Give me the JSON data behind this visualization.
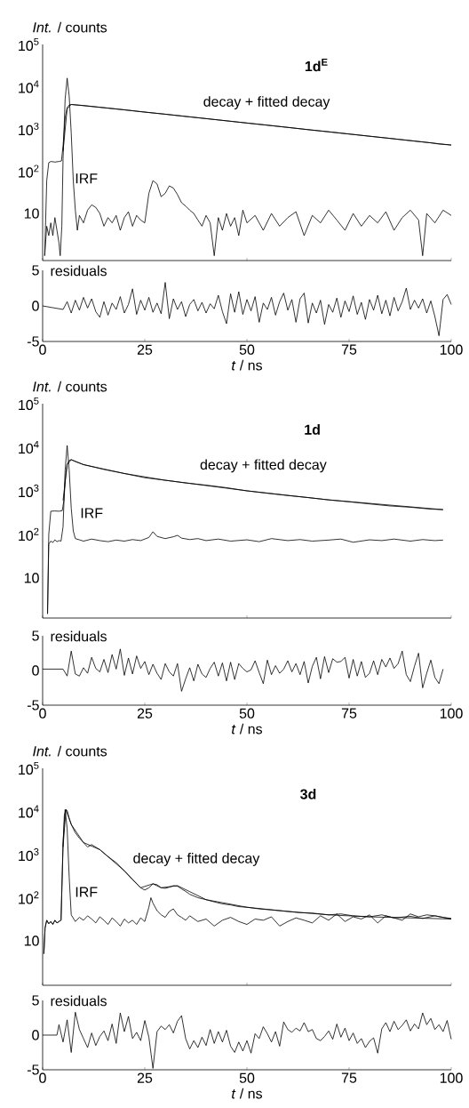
{
  "chart_data": [
    {
      "type": "line",
      "title": "1d$^{E}$",
      "ylabel": "*Int.* / counts",
      "log": true,
      "tick_labels": "y",
      "xlim": [
        0,
        100
      ],
      "ylim": [
        0.77,
        100000
      ],
      "xticks": [
        {
          "value": 0,
          "label": null
        },
        {
          "value": 50,
          "label": null
        },
        {
          "value": 100,
          "label": null
        }
      ],
      "yticks": [
        10,
        {
          "value": 100,
          "label": "10$^{2}$"
        },
        {
          "value": 1000,
          "label": "10$^{3}$"
        },
        {
          "value": 10000,
          "label": "10$^{4}$"
        },
        {
          "value": 100000,
          "label": "10$^{5}$"
        }
      ],
      "annotations": [
        "decay + fitted decay",
        "IRF"
      ],
      "series": [
        {
          "color": "#000000",
          "x": [
            0.5,
            1,
            1.5,
            2,
            3,
            4,
            4.6,
            5,
            5.5,
            6,
            6.5,
            7,
            10,
            15,
            20,
            25,
            30,
            35,
            40,
            45,
            50,
            55,
            60,
            65,
            70,
            75,
            80,
            85,
            90,
            95,
            97,
            100
          ],
          "values": [
            1,
            60,
            160,
            170,
            165,
            170,
            175,
            400,
            1800,
            3200,
            3700,
            3800,
            3600,
            3200,
            2840,
            2500,
            2240,
            1980,
            1760,
            1560,
            1380,
            1230,
            1090,
            960,
            857,
            760,
            674,
            600,
            530,
            470,
            440,
            417
          ]
        },
        {
          "color": "#000000",
          "x": [
            5,
            6,
            7,
            20,
            40,
            60,
            80,
            100
          ],
          "values": [
            300,
            3000,
            3800,
            2840,
            1760,
            1090,
            674,
            417
          ]
        },
        {
          "color": "#000000",
          "x": [
            0.5,
            1,
            1.5,
            2,
            2.5,
            3,
            3.5,
            4,
            4.3,
            4.7,
            5,
            5.5,
            6,
            6.5,
            7,
            7.5,
            8,
            8.5,
            9,
            10,
            11,
            12,
            13,
            14,
            15,
            16,
            17,
            18,
            19,
            20,
            21,
            22,
            23,
            24,
            25,
            26,
            27,
            28,
            29,
            30,
            31,
            32,
            33,
            34,
            35,
            36,
            37,
            38,
            39,
            40,
            41,
            42,
            43,
            44,
            45,
            46,
            47,
            48,
            49,
            50,
            52,
            54,
            56,
            58,
            60,
            62,
            64,
            66,
            68,
            70,
            72,
            74,
            76,
            78,
            80,
            82,
            84,
            86,
            88,
            90,
            92,
            93,
            94,
            96,
            98,
            100
          ],
          "values": [
            1,
            5,
            3,
            6,
            3,
            8,
            4,
            2,
            1,
            5,
            200,
            5000,
            16000,
            6000,
            800,
            60,
            12,
            4,
            9,
            6,
            12,
            16,
            14,
            10,
            5,
            8,
            6,
            9,
            4,
            8,
            11,
            5,
            9,
            7,
            6,
            30,
            60,
            50,
            25,
            30,
            45,
            40,
            28,
            18,
            15,
            12,
            10,
            7,
            5,
            9,
            6,
            1,
            8,
            4,
            10,
            5,
            8,
            3,
            12,
            6,
            9,
            4,
            10,
            5,
            8,
            11,
            3,
            9,
            6,
            12,
            7,
            4,
            10,
            5,
            9,
            6,
            11,
            4,
            8,
            12,
            7,
            1,
            10,
            6,
            12,
            9
          ]
        }
      ]
    },
    {
      "type": "line",
      "ylabel": "residuals",
      "xlabel": "*t* / ns",
      "xlim": [
        0,
        100
      ],
      "ylim": [
        -5,
        5
      ],
      "xticks": [
        0,
        25,
        50,
        75,
        100
      ],
      "yticks": [
        -5,
        0,
        5
      ],
      "x": [
        0,
        5,
        6,
        7,
        8,
        9,
        10,
        11,
        12,
        13,
        14,
        15,
        16,
        17,
        18,
        19,
        20,
        21,
        22,
        23,
        24,
        25,
        26,
        27,
        28,
        29,
        30,
        31,
        32,
        33,
        34,
        35,
        36,
        37,
        38,
        39,
        40,
        41,
        42,
        43,
        44,
        45,
        46,
        47,
        48,
        49,
        50,
        51,
        52,
        53,
        54,
        55,
        56,
        57,
        58,
        59,
        60,
        61,
        62,
        63,
        64,
        65,
        66,
        67,
        68,
        69,
        70,
        71,
        72,
        73,
        74,
        75,
        76,
        77,
        78,
        79,
        80,
        81,
        82,
        83,
        84,
        85,
        86,
        87,
        88,
        89,
        90,
        91,
        92,
        93,
        94,
        95,
        96,
        97,
        98,
        99,
        100
      ],
      "series": [
        {
          "color": "#000000",
          "values": [
            0,
            -0.5,
            0.6,
            -1.0,
            0.8,
            -0.6,
            1.2,
            -0.3,
            1.0,
            -0.8,
            -1.6,
            0.6,
            -1.3,
            0.4,
            -0.5,
            1.3,
            -1.0,
            0.2,
            2.4,
            -1.2,
            0.8,
            -0.6,
            1.2,
            -0.9,
            0.4,
            -1.1,
            3.3,
            -1.8,
            1.0,
            -0.5,
            0.6,
            -1.5,
            0.2,
            0.9,
            -0.7,
            0.5,
            -1.0,
            0.3,
            -0.4,
            1.5,
            -0.8,
            -2.5,
            1.7,
            -0.9,
            2.0,
            -1.2,
            0.9,
            -0.7,
            1.3,
            -2.3,
            0.4,
            -0.5,
            1.2,
            -1.3,
            0.6,
            1.8,
            -0.6,
            0.9,
            -2.3,
            1.0,
            1.8,
            -2.4,
            0.4,
            -1.0,
            0.8,
            -2.6,
            0.2,
            -0.9,
            1.1,
            -1.6,
            0.7,
            -0.8,
            1.4,
            -1.2,
            0.5,
            -1.9,
            0.9,
            -0.6,
            1.5,
            -1.1,
            0.8,
            -1.4,
            1.2,
            -0.7,
            0.6,
            2.5,
            -0.5,
            0.8,
            -0.3,
            1.0,
            -1.0,
            0.7,
            -1.5,
            -4.2,
            0.9,
            1.6,
            0.2
          ]
        }
      ]
    },
    {
      "type": "line",
      "title": "1d",
      "ylabel": "*Int.* / counts",
      "log": true,
      "tick_labels": "y",
      "xlim": [
        0,
        100
      ],
      "ylim": [
        1.2,
        100000
      ],
      "xticks": [
        {
          "value": 0,
          "label": null
        },
        {
          "value": 50,
          "label": null
        },
        {
          "value": 100,
          "label": null
        }
      ],
      "yticks": [
        10,
        {
          "value": 100,
          "label": "10$^{2}$"
        },
        {
          "value": 1000,
          "label": "10$^{3}$"
        },
        {
          "value": 10000,
          "label": "10$^{4}$"
        },
        {
          "value": 100000,
          "label": "10$^{5}$"
        }
      ],
      "annotations": [
        "decay + fitted decay",
        "IRF"
      ],
      "series": [
        {
          "color": "#000000",
          "x": [
            1.2,
            1.5,
            2,
            3,
            4,
            4.8,
            5.2,
            5.6,
            6,
            6.5,
            7,
            8,
            10,
            15,
            20,
            25,
            30,
            35,
            40,
            45,
            50,
            55,
            60,
            65,
            70,
            75,
            80,
            85,
            90,
            95,
            98
          ],
          "values": [
            1.5,
            100,
            340,
            345,
            340,
            350,
            600,
            2000,
            4000,
            5000,
            5200,
            4700,
            4000,
            3100,
            2500,
            2000,
            1750,
            1520,
            1350,
            1180,
            1000,
            880,
            780,
            700,
            620,
            560,
            500,
            450,
            420,
            380,
            370
          ]
        },
        {
          "color": "#000000",
          "x": [
            5,
            6,
            7,
            10,
            20,
            30,
            50,
            70,
            98
          ],
          "values": [
            600,
            4000,
            5200,
            4000,
            2500,
            1750,
            1000,
            620,
            370
          ]
        },
        {
          "color": "#000000",
          "x": [
            1.2,
            1.5,
            2,
            2.5,
            3,
            3.5,
            4,
            4.5,
            5,
            5.5,
            6,
            6.5,
            7,
            7.5,
            8,
            9,
            10,
            12,
            14,
            16,
            18,
            20,
            22,
            24,
            26,
            27,
            28,
            30,
            32,
            33,
            34,
            36,
            38,
            40,
            43,
            46,
            50,
            53,
            56,
            60,
            63,
            66,
            70,
            73,
            76,
            80,
            83,
            86,
            90,
            93,
            96,
            98
          ],
          "values": [
            1.5,
            60,
            70,
            65,
            75,
            68,
            72,
            70,
            150,
            3000,
            11000,
            3000,
            400,
            120,
            80,
            75,
            70,
            78,
            72,
            68,
            74,
            70,
            76,
            72,
            85,
            115,
            90,
            80,
            88,
            95,
            82,
            76,
            80,
            72,
            78,
            70,
            75,
            68,
            80,
            72,
            76,
            70,
            74,
            78,
            66,
            75,
            72,
            78,
            70,
            76,
            72,
            74
          ]
        }
      ]
    },
    {
      "type": "line",
      "ylabel": "residuals",
      "xlabel": "*t* / ns",
      "xlim": [
        0,
        100
      ],
      "ylim": [
        -5,
        5
      ],
      "xticks": [
        0,
        25,
        50,
        75,
        100
      ],
      "yticks": [
        -5,
        0,
        5
      ],
      "x": [
        0,
        5,
        6,
        7,
        8,
        9,
        10,
        11,
        12,
        13,
        14,
        15,
        16,
        17,
        18,
        19,
        20,
        21,
        22,
        23,
        24,
        25,
        26,
        27,
        28,
        29,
        30,
        31,
        32,
        33,
        34,
        35,
        36,
        37,
        38,
        39,
        40,
        41,
        42,
        43,
        44,
        45,
        46,
        47,
        48,
        49,
        50,
        51,
        52,
        53,
        54,
        55,
        56,
        57,
        58,
        59,
        60,
        61,
        62,
        63,
        64,
        65,
        66,
        67,
        68,
        69,
        70,
        71,
        72,
        73,
        74,
        75,
        76,
        77,
        78,
        79,
        80,
        81,
        82,
        83,
        84,
        85,
        86,
        87,
        88,
        89,
        90,
        91,
        92,
        93,
        94,
        95,
        96,
        97,
        98
      ],
      "series": [
        {
          "color": "#000000",
          "values": [
            0.2,
            0.2,
            -0.8,
            2.8,
            -0.5,
            -0.8,
            0.4,
            -0.4,
            1.9,
            0.3,
            -0.2,
            1.6,
            -0.3,
            2.3,
            0.2,
            3.1,
            -0.7,
            1.8,
            -0.5,
            2.1,
            0.3,
            1.3,
            -0.6,
            0.9,
            -0.4,
            -1.3,
            1.0,
            -0.2,
            -0.8,
            1.0,
            -3.0,
            -1.2,
            0.4,
            -1.5,
            0.9,
            -0.5,
            -1.0,
            0.3,
            1.2,
            -0.8,
            1.1,
            -1.5,
            1.2,
            -1.3,
            1.0,
            0.3,
            -0.2,
            0.1,
            1.4,
            -0.3,
            -1.9,
            1.5,
            -0.6,
            0.7,
            -0.4,
            0.2,
            1.4,
            -0.2,
            1.0,
            -0.6,
            1.3,
            -1.8,
            0.6,
            1.9,
            -1.2,
            2.0,
            -0.3,
            1.7,
            1.2,
            1.3,
            1.9,
            -1.1,
            1.6,
            -0.8,
            1.3,
            -1.0,
            -0.4,
            1.4,
            -0.6,
            1.6,
            0.5,
            1.8,
            0.3,
            1.0,
            2.8,
            -0.6,
            -1.6,
            0.6,
            2.5,
            -2.5,
            -0.4,
            1.5,
            -1.0,
            -1.9,
            0.2
          ]
        }
      ]
    },
    {
      "type": "line",
      "title": "3d",
      "ylabel": "*Int.* / counts",
      "log": true,
      "tick_labels": "y",
      "xlim": [
        0,
        100
      ],
      "ylim": [
        0.93,
        100000
      ],
      "xticks": [
        {
          "value": 0,
          "label": null
        },
        {
          "value": 50,
          "label": null
        },
        {
          "value": 100,
          "label": null
        }
      ],
      "yticks": [
        10,
        {
          "value": 100,
          "label": "10$^{2}$"
        },
        {
          "value": 1000,
          "label": "10$^{3}$"
        },
        {
          "value": 10000,
          "label": "10$^{4}$"
        },
        {
          "value": 100000,
          "label": "10$^{5}$"
        }
      ],
      "annotations": [
        "decay + fitted decay",
        "IRF"
      ],
      "series": [
        {
          "color": "#000000",
          "x": [
            0.3,
            0.6,
            1,
            1.5,
            2,
            2.5,
            3,
            3.5,
            4,
            4.5,
            5,
            5.3,
            5.7,
            6,
            6.5,
            7,
            8,
            9,
            10,
            11,
            12,
            14,
            16,
            18,
            20,
            22,
            24,
            25,
            26,
            27,
            28,
            29,
            30,
            31,
            32,
            33,
            34,
            35,
            36,
            38,
            40,
            42,
            44,
            46,
            48,
            50,
            53,
            56,
            60,
            63,
            66,
            70,
            73,
            76,
            80,
            83,
            86,
            90,
            93,
            96,
            100
          ],
          "values": [
            5,
            20,
            30,
            25,
            28,
            24,
            30,
            26,
            28,
            30,
            1500,
            8000,
            11000,
            10500,
            7000,
            5000,
            3200,
            2400,
            1900,
            1500,
            1700,
            1300,
            900,
            650,
            420,
            260,
            170,
            150,
            170,
            210,
            200,
            170,
            165,
            175,
            190,
            185,
            160,
            140,
            120,
            100,
            90,
            80,
            72,
            68,
            62,
            60,
            55,
            52,
            48,
            45,
            44,
            40,
            42,
            38,
            36,
            40,
            34,
            37,
            33,
            38,
            32
          ]
        },
        {
          "color": "#000000",
          "x": [
            5,
            5.7,
            7,
            10,
            14,
            20,
            24,
            27,
            29,
            33,
            40,
            50,
            60,
            70,
            80,
            90,
            100
          ],
          "values": [
            1500,
            11000,
            5000,
            1900,
            1300,
            420,
            170,
            210,
            170,
            190,
            90,
            60,
            48,
            40,
            36,
            34,
            32
          ]
        },
        {
          "color": "#000000",
          "x": [
            0.3,
            0.6,
            1,
            1.5,
            2,
            2.5,
            3,
            3.5,
            4,
            4.5,
            5,
            5.5,
            6,
            6.5,
            7,
            8,
            9,
            10,
            11,
            12,
            13,
            14,
            15,
            16,
            17,
            18,
            19,
            20,
            21,
            22,
            23,
            24,
            25,
            26,
            26.5,
            27,
            28,
            29,
            30,
            31,
            32,
            33,
            34,
            35,
            36,
            38,
            40,
            42,
            44,
            46,
            48,
            50,
            52,
            54,
            56,
            58,
            60,
            62,
            64,
            66,
            68,
            70,
            72,
            74,
            76,
            78,
            80,
            82,
            84,
            86,
            88,
            90,
            92,
            94,
            96,
            98,
            100
          ],
          "values": [
            5,
            20,
            30,
            25,
            28,
            24,
            30,
            26,
            28,
            30,
            2000,
            11000,
            4000,
            300,
            40,
            28,
            35,
            30,
            38,
            32,
            26,
            36,
            30,
            24,
            34,
            28,
            22,
            32,
            26,
            30,
            24,
            34,
            28,
            60,
            100,
            75,
            50,
            40,
            35,
            48,
            55,
            40,
            35,
            30,
            38,
            28,
            32,
            22,
            30,
            35,
            28,
            24,
            32,
            30,
            36,
            22,
            28,
            34,
            30,
            26,
            38,
            30,
            42,
            28,
            36,
            32,
            40,
            26,
            38,
            34,
            30,
            42,
            36,
            40,
            38,
            35,
            33
          ]
        }
      ]
    },
    {
      "type": "line",
      "ylabel": "residuals",
      "xlabel": "*t* / ns",
      "xlim": [
        0,
        100
      ],
      "ylim": [
        -5,
        5
      ],
      "xticks": [
        0,
        25,
        50,
        75,
        100
      ],
      "yticks": [
        -5,
        0,
        5
      ],
      "x": [
        0,
        3.5,
        4,
        5,
        6,
        7,
        8,
        9,
        10,
        11,
        12,
        13,
        14,
        15,
        16,
        17,
        18,
        19,
        20,
        21,
        22,
        23,
        24,
        25,
        26,
        27,
        28,
        29,
        30,
        31,
        32,
        33,
        34,
        35,
        36,
        37,
        38,
        39,
        40,
        41,
        42,
        43,
        44,
        45,
        46,
        47,
        48,
        49,
        50,
        51,
        52,
        53,
        54,
        55,
        56,
        57,
        58,
        59,
        60,
        61,
        62,
        63,
        64,
        65,
        66,
        67,
        68,
        69,
        70,
        71,
        72,
        73,
        74,
        75,
        76,
        77,
        78,
        79,
        80,
        81,
        82,
        83,
        84,
        85,
        86,
        87,
        88,
        89,
        90,
        91,
        92,
        93,
        94,
        95,
        96,
        97,
        98,
        99,
        100
      ],
      "series": [
        {
          "color": "#000000",
          "values": [
            0,
            0,
            1.5,
            -1.0,
            2.2,
            -2.5,
            3.3,
            0.8,
            -0.5,
            -1.8,
            0.3,
            -1.5,
            -0.2,
            0.6,
            -0.8,
            1.6,
            -1.2,
            3.2,
            0.5,
            2.7,
            -0.5,
            0.4,
            -0.8,
            2.1,
            -0.3,
            -4.8,
            0.5,
            1.3,
            0.8,
            1.5,
            0.3,
            2.0,
            2.8,
            -0.5,
            -2.0,
            -0.8,
            -1.8,
            -0.3,
            -1.5,
            0.8,
            -1.2,
            0.5,
            -1.0,
            0.7,
            -1.6,
            -2.5,
            -1.0,
            -2.3,
            -0.8,
            -2.6,
            0.2,
            -0.5,
            1.2,
            0.2,
            -1.0,
            0.5,
            -1.6,
            1.9,
            0.8,
            0.4,
            1.0,
            0.6,
            1.8,
            0.5,
            0.8,
            -0.5,
            -0.8,
            -0.2,
            0.6,
            -0.6,
            1.6,
            -0.3,
            1.0,
            -0.8,
            0.3,
            -1.2,
            -0.5,
            -1.8,
            -0.9,
            -0.4,
            -2.6,
            0.9,
            1.8,
            0.5,
            2.0,
            0.8,
            1.4,
            2.2,
            0.6,
            1.6,
            0.9,
            3.2,
            1.5,
            2.4,
            0.8,
            1.5,
            0.5,
            2.1,
            -0.6
          ]
        }
      ]
    }
  ]
}
